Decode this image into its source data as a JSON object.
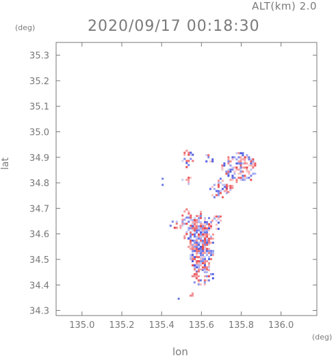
{
  "header": {
    "altitude": "ALT(km) 2.0",
    "datetime": "2020/09/17 00:18:30"
  },
  "chart_data": {
    "type": "heatmap",
    "title": "2020/09/17 00:18:30",
    "subtitle": "ALT(km) 2.0",
    "xlabel": "lon",
    "ylabel": "lat",
    "xunit": "(deg)",
    "yunit": "(deg)",
    "xlim": [
      134.87,
      136.18
    ],
    "ylim": [
      34.28,
      35.35
    ],
    "xticks": [
      "135.0",
      "135.2",
      "135.4",
      "135.6",
      "135.8",
      "136.0"
    ],
    "yticks": [
      "34.3",
      "34.4",
      "34.5",
      "34.6",
      "34.7",
      "34.8",
      "34.9",
      "35.0",
      "35.1",
      "35.2",
      "35.3"
    ],
    "grid": false,
    "colors": {
      "positive": "#e8434a",
      "negative": "#4b58e0",
      "axis": "#777777"
    },
    "regions": [
      {
        "lon": [
          135.53,
          135.66
        ],
        "lat": [
          34.45,
          34.69
        ],
        "density": 0.8
      },
      {
        "lon": [
          135.49,
          135.55
        ],
        "lat": [
          34.58,
          34.7
        ],
        "density": 0.55
      },
      {
        "lon": [
          135.55,
          135.66
        ],
        "lat": [
          34.4,
          34.47
        ],
        "density": 0.45
      },
      {
        "lon": [
          135.65,
          135.7
        ],
        "lat": [
          34.62,
          34.68
        ],
        "density": 0.35
      },
      {
        "lon": [
          135.7,
          135.87
        ],
        "lat": [
          34.8,
          34.92
        ],
        "density": 0.55
      },
      {
        "lon": [
          135.64,
          135.73
        ],
        "lat": [
          34.74,
          34.82
        ],
        "density": 0.45
      },
      {
        "lon": [
          135.71,
          135.76
        ],
        "lat": [
          34.76,
          34.8
        ],
        "density": 0.4
      },
      {
        "lon": [
          135.61,
          135.66
        ],
        "lat": [
          34.88,
          34.92
        ],
        "density": 0.35
      },
      {
        "lon": [
          135.49,
          135.56
        ],
        "lat": [
          34.86,
          34.93
        ],
        "density": 0.3
      },
      {
        "lon": [
          135.5,
          135.55
        ],
        "lat": [
          34.79,
          34.84
        ],
        "density": 0.3
      },
      {
        "lon": [
          135.39,
          135.41
        ],
        "lat": [
          34.79,
          34.82
        ],
        "density": 0.5
      },
      {
        "lon": [
          135.44,
          135.48
        ],
        "lat": [
          34.61,
          34.66
        ],
        "density": 0.3
      },
      {
        "lon": [
          135.53,
          135.57
        ],
        "lat": [
          34.33,
          34.37
        ],
        "density": 0.35
      },
      {
        "lon": [
          135.46,
          135.5
        ],
        "lat": [
          34.33,
          34.35
        ],
        "density": 0.4
      },
      {
        "lon": [
          135.55,
          135.59
        ],
        "lat": [
          34.41,
          34.43
        ],
        "density": 0.5
      }
    ]
  }
}
